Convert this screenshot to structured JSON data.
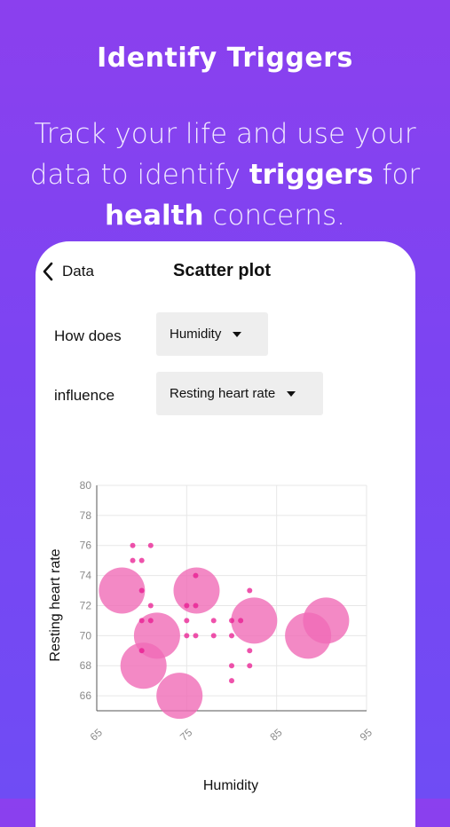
{
  "hero": {
    "title": "Identify Triggers",
    "subtitle_parts": [
      "Track your life and use your data to identify ",
      "triggers",
      " for ",
      "health",
      " concerns."
    ]
  },
  "nav": {
    "back_label": "Data",
    "title": "Scatter plot"
  },
  "controls": {
    "row1_label": "How does",
    "row1_value": "Humidity",
    "row2_label": "influence",
    "row2_value": "Resting heart rate"
  },
  "colors": {
    "accent": "#e8188f",
    "bubble": "#f06cb7",
    "grid": "#e7e7e7"
  },
  "chart_data": {
    "type": "scatter",
    "xlabel": "Humidity",
    "ylabel": "Resting heart rate",
    "xlim": [
      65,
      95
    ],
    "ylim": [
      65,
      80
    ],
    "xticks": [
      "65",
      "75",
      "85",
      "95"
    ],
    "yticks": [
      "66",
      "68",
      "70",
      "72",
      "74",
      "76",
      "78",
      "80"
    ],
    "grid": true,
    "points": [
      {
        "x": 69,
        "y": 76
      },
      {
        "x": 69,
        "y": 75
      },
      {
        "x": 70,
        "y": 75
      },
      {
        "x": 71,
        "y": 76
      },
      {
        "x": 70,
        "y": 73
      },
      {
        "x": 71,
        "y": 72
      },
      {
        "x": 70,
        "y": 71
      },
      {
        "x": 71,
        "y": 71
      },
      {
        "x": 75,
        "y": 72
      },
      {
        "x": 75,
        "y": 71
      },
      {
        "x": 76,
        "y": 72
      },
      {
        "x": 76,
        "y": 74
      },
      {
        "x": 75,
        "y": 70
      },
      {
        "x": 76,
        "y": 70
      },
      {
        "x": 78,
        "y": 71
      },
      {
        "x": 78,
        "y": 70
      },
      {
        "x": 80,
        "y": 71
      },
      {
        "x": 80,
        "y": 70
      },
      {
        "x": 81,
        "y": 71
      },
      {
        "x": 80,
        "y": 68
      },
      {
        "x": 80,
        "y": 67
      },
      {
        "x": 82,
        "y": 73
      },
      {
        "x": 82,
        "y": 69
      },
      {
        "x": 82,
        "y": 68
      },
      {
        "x": 70,
        "y": 69
      }
    ],
    "bubbles": [
      {
        "x": 67.8,
        "y": 73,
        "r": 26
      },
      {
        "x": 71.7,
        "y": 70,
        "r": 26
      },
      {
        "x": 70.2,
        "y": 68,
        "r": 26
      },
      {
        "x": 74.2,
        "y": 66,
        "r": 26
      },
      {
        "x": 76.1,
        "y": 73,
        "r": 26
      },
      {
        "x": 82.5,
        "y": 71,
        "r": 26
      },
      {
        "x": 88.5,
        "y": 70,
        "r": 26
      },
      {
        "x": 90.5,
        "y": 71,
        "r": 26
      }
    ]
  }
}
